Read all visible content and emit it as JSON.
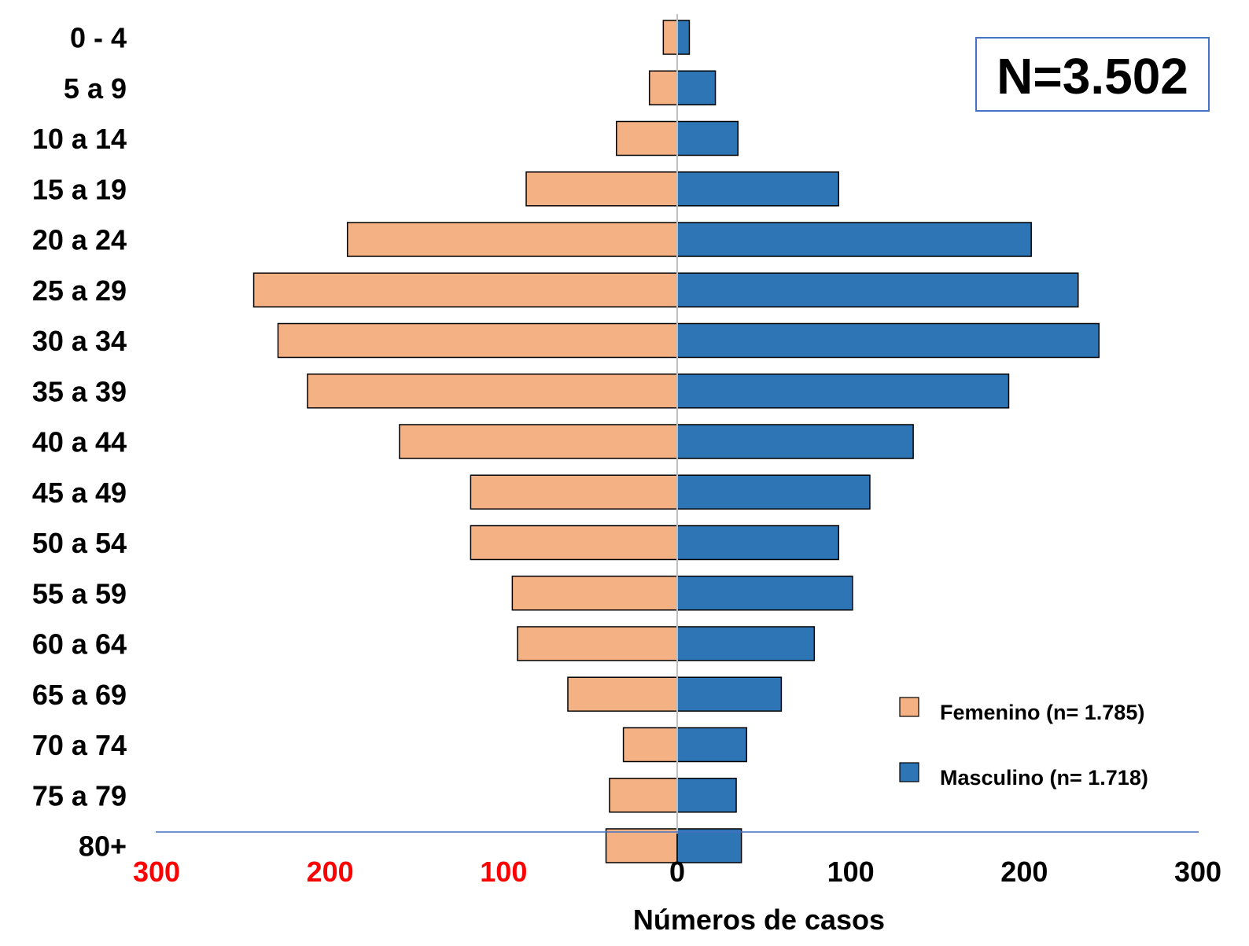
{
  "chart_data": {
    "type": "bar",
    "orientation": "horizontal",
    "layout": "population-pyramid",
    "categories": [
      "0 - 4",
      "5 a 9",
      "10 a 14",
      "15 a 19",
      "20 a 24",
      "25 a 29",
      "30 a 34",
      "35 a 39",
      "40 a 44",
      "45 a 49",
      "50 a 54",
      "55 a 59",
      "60 a 64",
      "65 a 69",
      "70 a 74",
      "75 a 79",
      "80+"
    ],
    "series": [
      {
        "name": "Femenino (n= 1.785)",
        "color": "#F4B183",
        "side": "left",
        "values": [
          8,
          16,
          35,
          87,
          190,
          244,
          230,
          213,
          160,
          119,
          119,
          95,
          92,
          63,
          31,
          39,
          41
        ]
      },
      {
        "name": "Masculino (n= 1.718)",
        "color": "#2E75B6",
        "side": "right",
        "values": [
          7,
          22,
          35,
          93,
          204,
          231,
          243,
          191,
          136,
          111,
          93,
          101,
          79,
          60,
          40,
          34,
          37
        ]
      }
    ],
    "xlim": [
      -300,
      300
    ],
    "x_ticks": [
      {
        "value": -300,
        "label": "300",
        "color": "#FF0000"
      },
      {
        "value": -200,
        "label": "200",
        "color": "#FF0000"
      },
      {
        "value": -100,
        "label": "100",
        "color": "#FF0000"
      },
      {
        "value": 0,
        "label": "0",
        "color": "#000000"
      },
      {
        "value": 100,
        "label": "100",
        "color": "#000000"
      },
      {
        "value": 200,
        "label": "200",
        "color": "#000000"
      },
      {
        "value": 300,
        "label": "300",
        "color": "#000000"
      }
    ],
    "xlabel": "Números de casos",
    "annotation": "N=3.502",
    "legend_position": "bottom-right",
    "grid": false
  }
}
